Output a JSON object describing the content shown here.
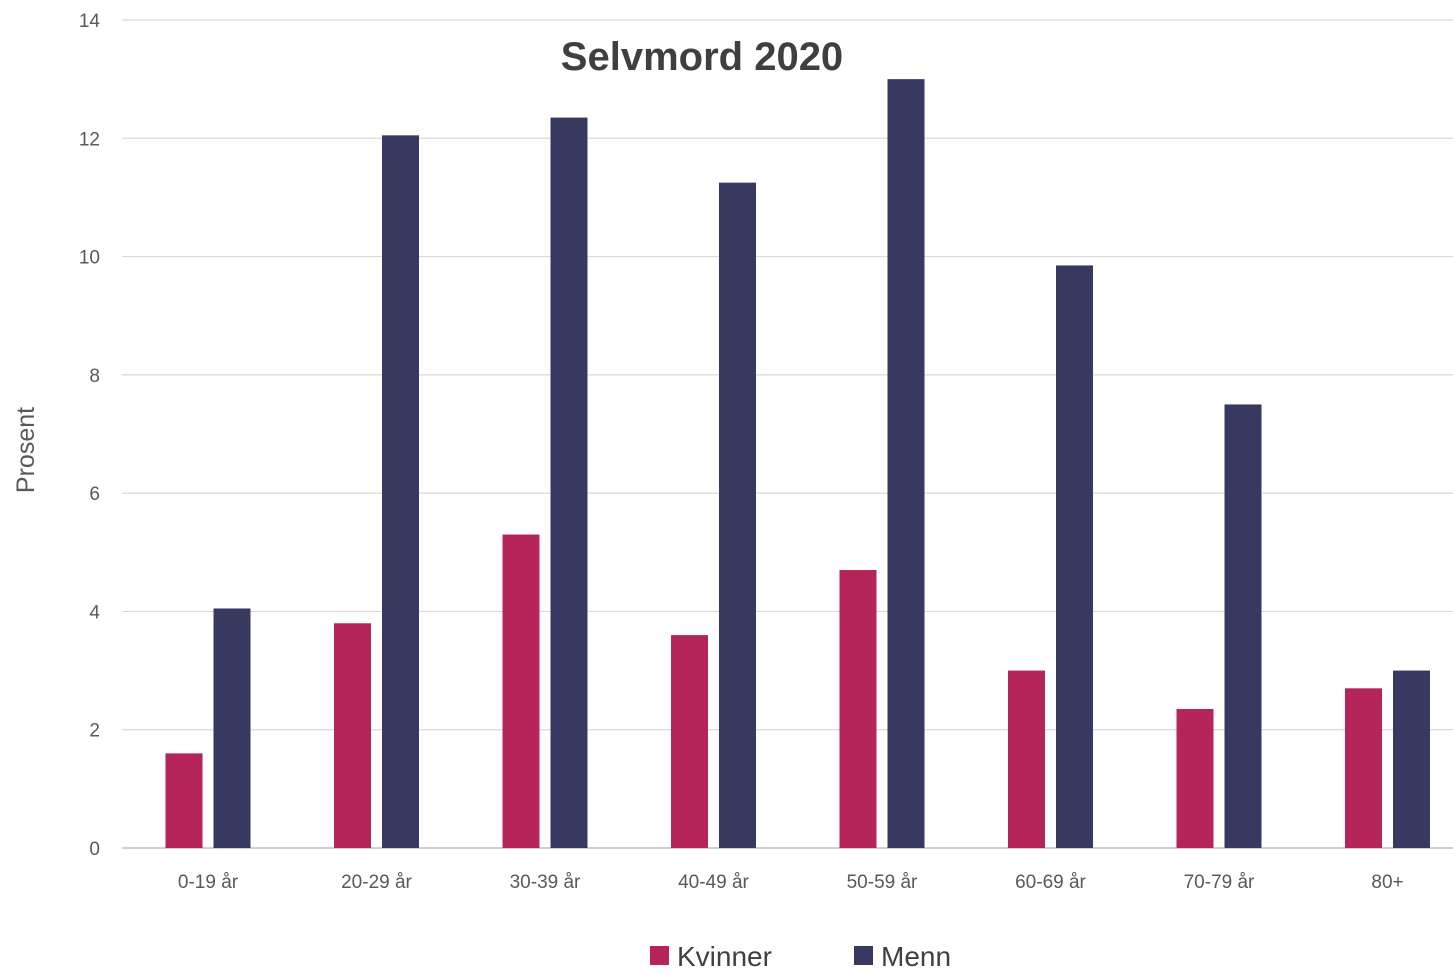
{
  "chart_data": {
    "type": "bar",
    "title": "Selvmord 2020",
    "xlabel": "",
    "ylabel": "Prosent",
    "ylim": [
      0,
      14
    ],
    "yticks": [
      0,
      2,
      4,
      6,
      8,
      10,
      12,
      14
    ],
    "categories": [
      "0-19 år",
      "20-29 år",
      "30-39 år",
      "40-49 år",
      "50-59 år",
      "60-69 år",
      "70-79 år",
      "80+"
    ],
    "series": [
      {
        "name": "Kvinner",
        "color": "#b5255a",
        "values": [
          1.6,
          3.8,
          5.3,
          3.6,
          4.7,
          3.0,
          2.35,
          2.7
        ]
      },
      {
        "name": "Menn",
        "color": "#383961",
        "values": [
          4.05,
          12.05,
          12.35,
          11.25,
          13.0,
          9.85,
          7.5,
          3.0
        ]
      }
    ],
    "grid": true,
    "legend": "bottom-center"
  }
}
